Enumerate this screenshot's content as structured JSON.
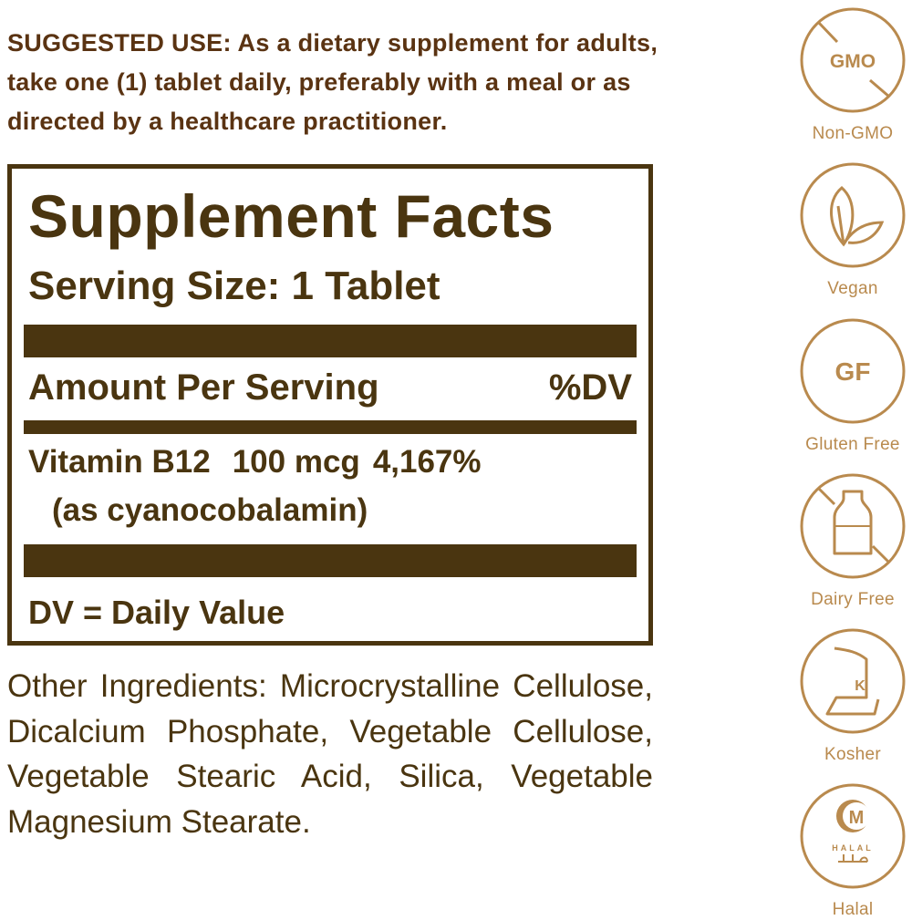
{
  "suggested_use": "SUGGESTED USE: As a dietary supplement for adults, take one (1) tablet daily, preferably with a meal or as directed by a healthcare practitioner.",
  "facts": {
    "title": "Supplement Facts",
    "serving_size": "Serving Size: 1 Tablet",
    "amount_header": "Amount Per Serving",
    "dv_header": "%DV",
    "nutrient": {
      "name": "Vitamin B12",
      "amount": "100 mcg",
      "dv": "4,167%",
      "form": "(as cyanocobalamin)"
    },
    "footnote": "DV = Daily Value"
  },
  "other_ingredients": "Other Ingredients: Microcrystalline Cellulose, Dicalcium Phosphate, Vegetable Cellulose, Vegetable Stearic Acid, Silica, Vegetable Magnesium Stearate.",
  "badges": [
    {
      "label": "Non-GMO",
      "icon_text": "GMO"
    },
    {
      "label": "Vegan"
    },
    {
      "label": "Gluten Free",
      "icon_text": "GF"
    },
    {
      "label": "Dairy Free"
    },
    {
      "label": "Kosher",
      "icon_text": "K"
    },
    {
      "label": "Halal",
      "icon_text": "M",
      "icon_subtext": "HALAL"
    }
  ],
  "colors": {
    "text": "#4a3510",
    "use_text": "#5a3312",
    "badge": "#b98a4e"
  }
}
